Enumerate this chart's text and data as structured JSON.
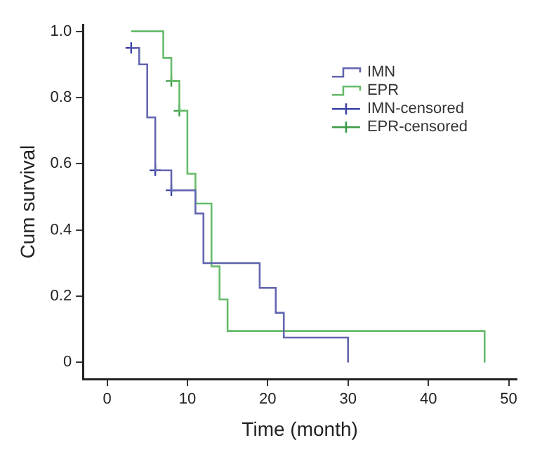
{
  "chart_data": {
    "type": "step",
    "xlabel": "Time (month)",
    "ylabel": "Cum survival",
    "xlim": [
      -3,
      51
    ],
    "xticks": [
      0,
      10,
      20,
      30,
      40,
      50
    ],
    "ylim": [
      -0.05,
      1.02
    ],
    "yticks": [
      0,
      0.2,
      0.4,
      0.6,
      0.8,
      {
        "value": 1,
        "label": "1.0"
      }
    ],
    "legend": "top right",
    "series": [
      {
        "name": "IMN",
        "type": "step",
        "color": "#6366b0",
        "x": [
          3,
          4,
          5,
          6,
          8,
          11,
          12,
          19,
          21,
          22,
          30
        ],
        "values": [
          0.95,
          0.9,
          0.74,
          0.58,
          0.52,
          0.45,
          0.3,
          0.225,
          0.15,
          0.075,
          0
        ]
      },
      {
        "name": "EPR",
        "type": "step",
        "color": "#66bb6a",
        "x": [
          3,
          7,
          8,
          9,
          10,
          11,
          13,
          14,
          15,
          47
        ],
        "values": [
          1,
          0.92,
          0.85,
          0.76,
          0.57,
          0.48,
          0.29,
          0.19,
          0.095,
          0
        ]
      },
      {
        "name": "IMN-censored",
        "type": "scatter",
        "marker": "cross",
        "color": "#3f44a8",
        "x": [
          3,
          6,
          8
        ],
        "values": [
          0.95,
          0.58,
          0.52
        ]
      },
      {
        "name": "EPR-censored",
        "type": "scatter",
        "marker": "cross",
        "color": "#3c9c44",
        "x": [
          8,
          9
        ],
        "values": [
          0.85,
          0.76
        ]
      }
    ]
  }
}
